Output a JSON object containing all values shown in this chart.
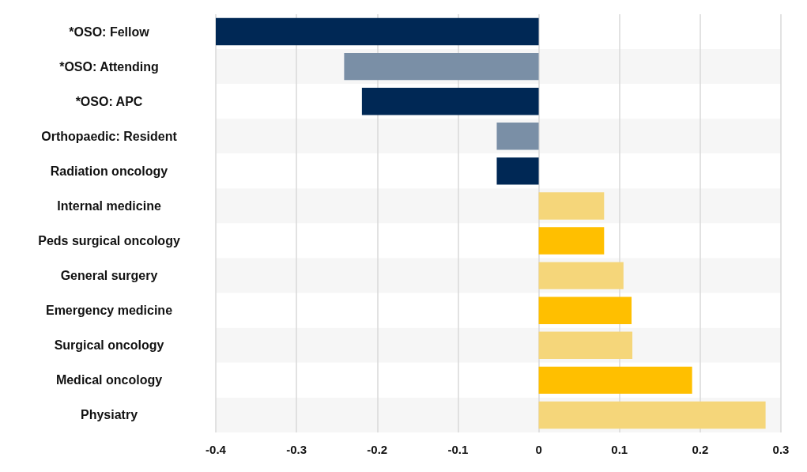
{
  "chart_data": {
    "type": "bar",
    "orientation": "horizontal",
    "categories": [
      "*OSO: Fellow",
      "*OSO: Attending",
      "*OSO: APC",
      "Orthopaedic: Resident",
      "Radiation oncology",
      "Internal medicine",
      "Peds surgical oncology",
      "General surgery",
      "Emergency medicine",
      "Surgical oncology",
      "Medical oncology",
      "Physiatry"
    ],
    "values": [
      -0.4,
      -0.241,
      -0.219,
      -0.052,
      -0.052,
      0.081,
      0.081,
      0.105,
      0.115,
      0.116,
      0.19,
      0.281
    ],
    "colors": [
      "#002855",
      "#7a8fa6",
      "#002855",
      "#7a8fa6",
      "#002855",
      "#f5d67a",
      "#ffbf00",
      "#f5d67a",
      "#ffbf00",
      "#f5d67a",
      "#ffbf00",
      "#f5d67a"
    ],
    "xlim": [
      -0.4,
      0.3
    ],
    "xticks": [
      -0.4,
      -0.3,
      -0.2,
      -0.1,
      0,
      0.1,
      0.2,
      0.3
    ],
    "grid": "x"
  }
}
